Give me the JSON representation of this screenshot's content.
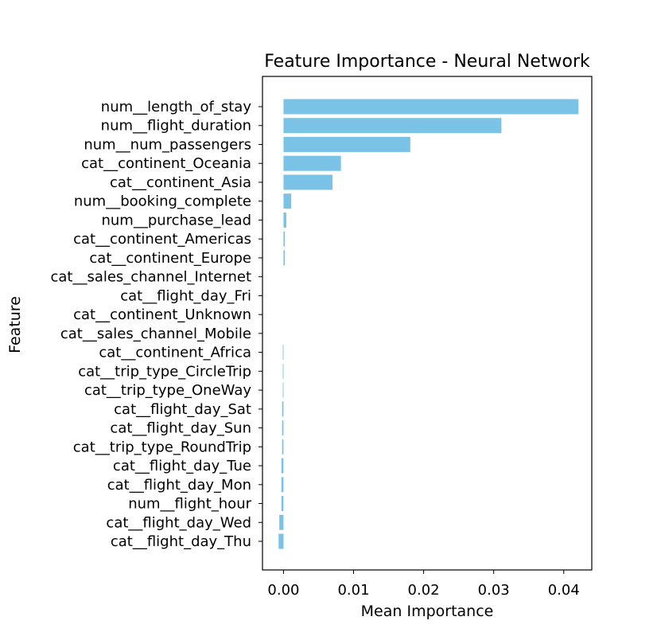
{
  "chart_data": {
    "type": "bar",
    "orientation": "horizontal",
    "title": "Feature Importance - Neural Network",
    "xlabel": "Mean Importance",
    "ylabel": "Feature",
    "xlim": [
      -0.003,
      0.044
    ],
    "xticks": [
      0.0,
      0.01,
      0.02,
      0.03,
      0.04
    ],
    "xtick_labels": [
      "0.00",
      "0.01",
      "0.02",
      "0.03",
      "0.04"
    ],
    "grid": false,
    "legend": "none",
    "bar_color": "#7bc3e6",
    "categories": [
      "num__length_of_stay",
      "num__flight_duration",
      "num__num_passengers",
      "cat__continent_Oceania",
      "cat__continent_Asia",
      "num__booking_complete",
      "num__purchase_lead",
      "cat__continent_Americas",
      "cat__continent_Europe",
      "cat__sales_channel_Internet",
      "cat__flight_day_Fri",
      "cat__continent_Unknown",
      "cat__sales_channel_Mobile",
      "cat__continent_Africa",
      "cat__trip_type_CircleTrip",
      "cat__trip_type_OneWay",
      "cat__flight_day_Sat",
      "cat__flight_day_Sun",
      "cat__trip_type_RoundTrip",
      "cat__flight_day_Tue",
      "cat__flight_day_Mon",
      "num__flight_hour",
      "cat__flight_day_Wed",
      "cat__flight_day_Thu"
    ],
    "values": [
      0.0421,
      0.0311,
      0.0181,
      0.0082,
      0.007,
      0.0011,
      0.0004,
      0.0002,
      0.0002,
      0.0,
      0.0,
      0.0,
      0.0,
      -0.0001,
      -0.0001,
      -0.0001,
      -0.0002,
      -0.0002,
      -0.0002,
      -0.0003,
      -0.0003,
      -0.0003,
      -0.0006,
      -0.0007
    ]
  }
}
